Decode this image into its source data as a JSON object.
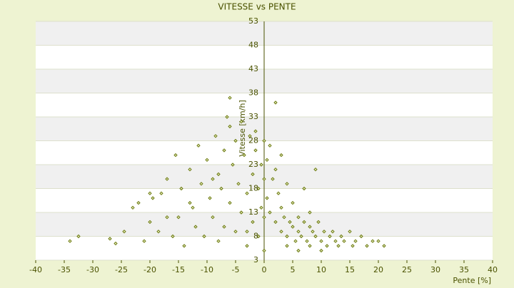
{
  "chart_data": {
    "type": "scatter",
    "title": "VITESSE vs PENTE",
    "x_label": "Pente [%]",
    "y_label": "Vitesse [km/h]",
    "xlim": [
      -40,
      40
    ],
    "xticks": [
      -40,
      -35,
      -30,
      -25,
      -20,
      -15,
      -10,
      -5,
      0,
      5,
      10,
      15,
      20,
      25,
      30,
      35,
      40
    ],
    "ylim": [
      3,
      53
    ],
    "yticks": [
      3,
      8,
      13,
      18,
      23,
      28,
      33,
      38,
      43,
      48,
      53
    ],
    "grid": true,
    "series": [
      {
        "color": "#6b7a10",
        "x": [
          -34,
          -32.5,
          -27,
          -26,
          -24.5,
          -23,
          -22,
          -21,
          -20,
          -19.5,
          -18.5,
          -18,
          -17,
          -16,
          -15.5,
          -15,
          -14.5,
          -14,
          -13,
          -12.5,
          -12,
          -11.5,
          -11,
          -10.5,
          -10,
          -9.5,
          -9,
          -8.5,
          -8,
          -8,
          -7.5,
          -7,
          -7,
          -6.5,
          -6,
          -6,
          -5.5,
          -5,
          -5,
          -4.5,
          -4,
          -4,
          -3.5,
          -3,
          -3,
          -2.5,
          -2,
          -2,
          -1.5,
          -1,
          -1,
          -0.5,
          -0.5,
          0,
          0,
          0,
          0,
          -6,
          -9,
          -13,
          -17,
          -20,
          -3,
          -1.5,
          0.5,
          0.5,
          1,
          1,
          1.5,
          2,
          2,
          2.5,
          3,
          3,
          3.5,
          4,
          4,
          4.5,
          5,
          5,
          5.5,
          6,
          6,
          6.5,
          7,
          7,
          7.5,
          8,
          8,
          8.5,
          9,
          9,
          9.5,
          10,
          10.5,
          11,
          11.5,
          12,
          12.5,
          13,
          13.5,
          14,
          15,
          15.5,
          16,
          17,
          18,
          19,
          20,
          21,
          4,
          6,
          8,
          10,
          2,
          3
        ],
        "values": [
          7,
          8,
          7.5,
          6.5,
          9,
          14,
          15,
          7,
          11,
          16,
          9,
          17,
          20,
          8,
          25,
          12,
          18,
          6,
          22,
          14,
          10,
          27,
          19,
          8,
          24,
          16,
          12,
          29,
          21,
          7,
          18,
          26,
          10,
          33,
          37,
          15,
          23,
          28,
          9,
          19,
          32,
          13,
          25,
          17,
          6,
          29,
          21,
          11,
          26,
          18,
          8,
          23,
          14,
          28,
          20,
          12,
          5,
          31,
          20,
          15,
          12,
          17,
          9,
          30,
          24,
          16,
          27,
          13,
          20,
          36,
          11,
          17,
          14,
          9,
          12,
          19,
          8,
          11,
          10,
          15,
          7,
          12,
          9,
          8,
          11,
          18,
          7,
          10,
          6,
          9,
          8,
          22,
          11,
          7,
          9,
          6,
          8,
          9,
          7,
          6,
          8,
          7,
          9,
          6,
          7,
          8,
          6,
          7,
          7,
          6,
          6,
          5,
          13,
          5,
          22,
          25
        ]
      }
    ]
  }
}
